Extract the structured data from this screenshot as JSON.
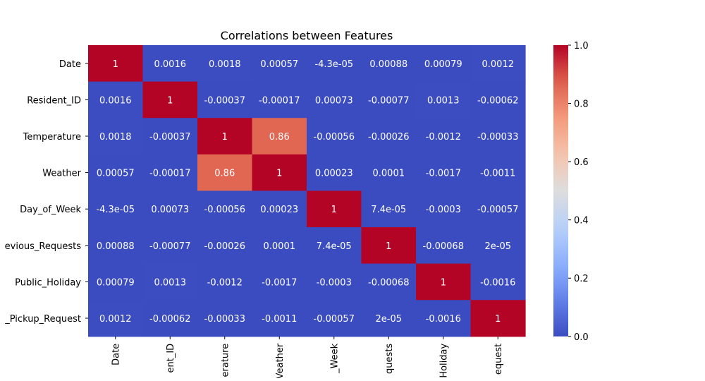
{
  "chart_data": {
    "type": "heatmap",
    "title": "Correlations between Features",
    "row_labels": [
      "Date",
      "Resident_ID",
      "Temperature",
      "Weather",
      "Day_of_Week",
      "evious_Requests",
      "Public_Holiday",
      "_Pickup_Request"
    ],
    "col_labels": [
      "Date",
      "ent_ID",
      "erature",
      "Veather",
      "_Week",
      "quests",
      "Holiday",
      "equest"
    ],
    "values": [
      [
        1,
        0.0016,
        0.0018,
        0.00057,
        -4.3e-05,
        0.00088,
        0.00079,
        0.0012
      ],
      [
        0.0016,
        1,
        -0.00037,
        -0.00017,
        0.00073,
        -0.00077,
        0.0013,
        -0.00062
      ],
      [
        0.0018,
        -0.00037,
        1,
        0.86,
        -0.00056,
        -0.00026,
        -0.0012,
        -0.00033
      ],
      [
        0.00057,
        -0.00017,
        0.86,
        1,
        0.00023,
        0.0001,
        -0.0017,
        -0.0011
      ],
      [
        -4.3e-05,
        0.00073,
        -0.00056,
        0.00023,
        1,
        7.4e-05,
        -0.0003,
        -0.00057
      ],
      [
        0.00088,
        -0.00077,
        -0.00026,
        0.0001,
        7.4e-05,
        1,
        -0.00068,
        2e-05
      ],
      [
        0.00079,
        0.0013,
        -0.0012,
        -0.0017,
        -0.0003,
        -0.00068,
        1,
        -0.0016
      ],
      [
        0.0012,
        -0.00062,
        -0.00033,
        -0.0011,
        -0.00057,
        2e-05,
        -0.0016,
        1
      ]
    ],
    "annotations": [
      [
        "1",
        "0.0016",
        "0.0018",
        "0.00057",
        "-4.3e-05",
        "0.00088",
        "0.00079",
        "0.0012"
      ],
      [
        "0.0016",
        "1",
        "-0.00037",
        "-0.00017",
        "0.00073",
        "-0.00077",
        "0.0013",
        "-0.00062"
      ],
      [
        "0.0018",
        "-0.00037",
        "1",
        "0.86",
        "-0.00056",
        "-0.00026",
        "-0.0012",
        "-0.00033"
      ],
      [
        "0.00057",
        "-0.00017",
        "0.86",
        "1",
        "0.00023",
        "0.0001",
        "-0.0017",
        "-0.0011"
      ],
      [
        "-4.3e-05",
        "0.00073",
        "-0.00056",
        "0.00023",
        "1",
        "7.4e-05",
        "-0.0003",
        "-0.00057"
      ],
      [
        "0.00088",
        "-0.00077",
        "-0.00026",
        "0.0001",
        "7.4e-05",
        "1",
        "-0.00068",
        "2e-05"
      ],
      [
        "0.00079",
        "0.0013",
        "-0.0012",
        "-0.0017",
        "-0.0003",
        "-0.00068",
        "1",
        "-0.0016"
      ],
      [
        "0.0012",
        "-0.00062",
        "-0.00033",
        "-0.0011",
        "-0.00057",
        "2e-05",
        "-0.0016",
        "1"
      ]
    ],
    "colormap": "coolwarm",
    "colorbar": {
      "range": [
        0.0,
        1.0
      ],
      "ticks": [
        "0.0",
        "0.2",
        "0.4",
        "0.6",
        "0.8",
        "1.0"
      ]
    }
  }
}
